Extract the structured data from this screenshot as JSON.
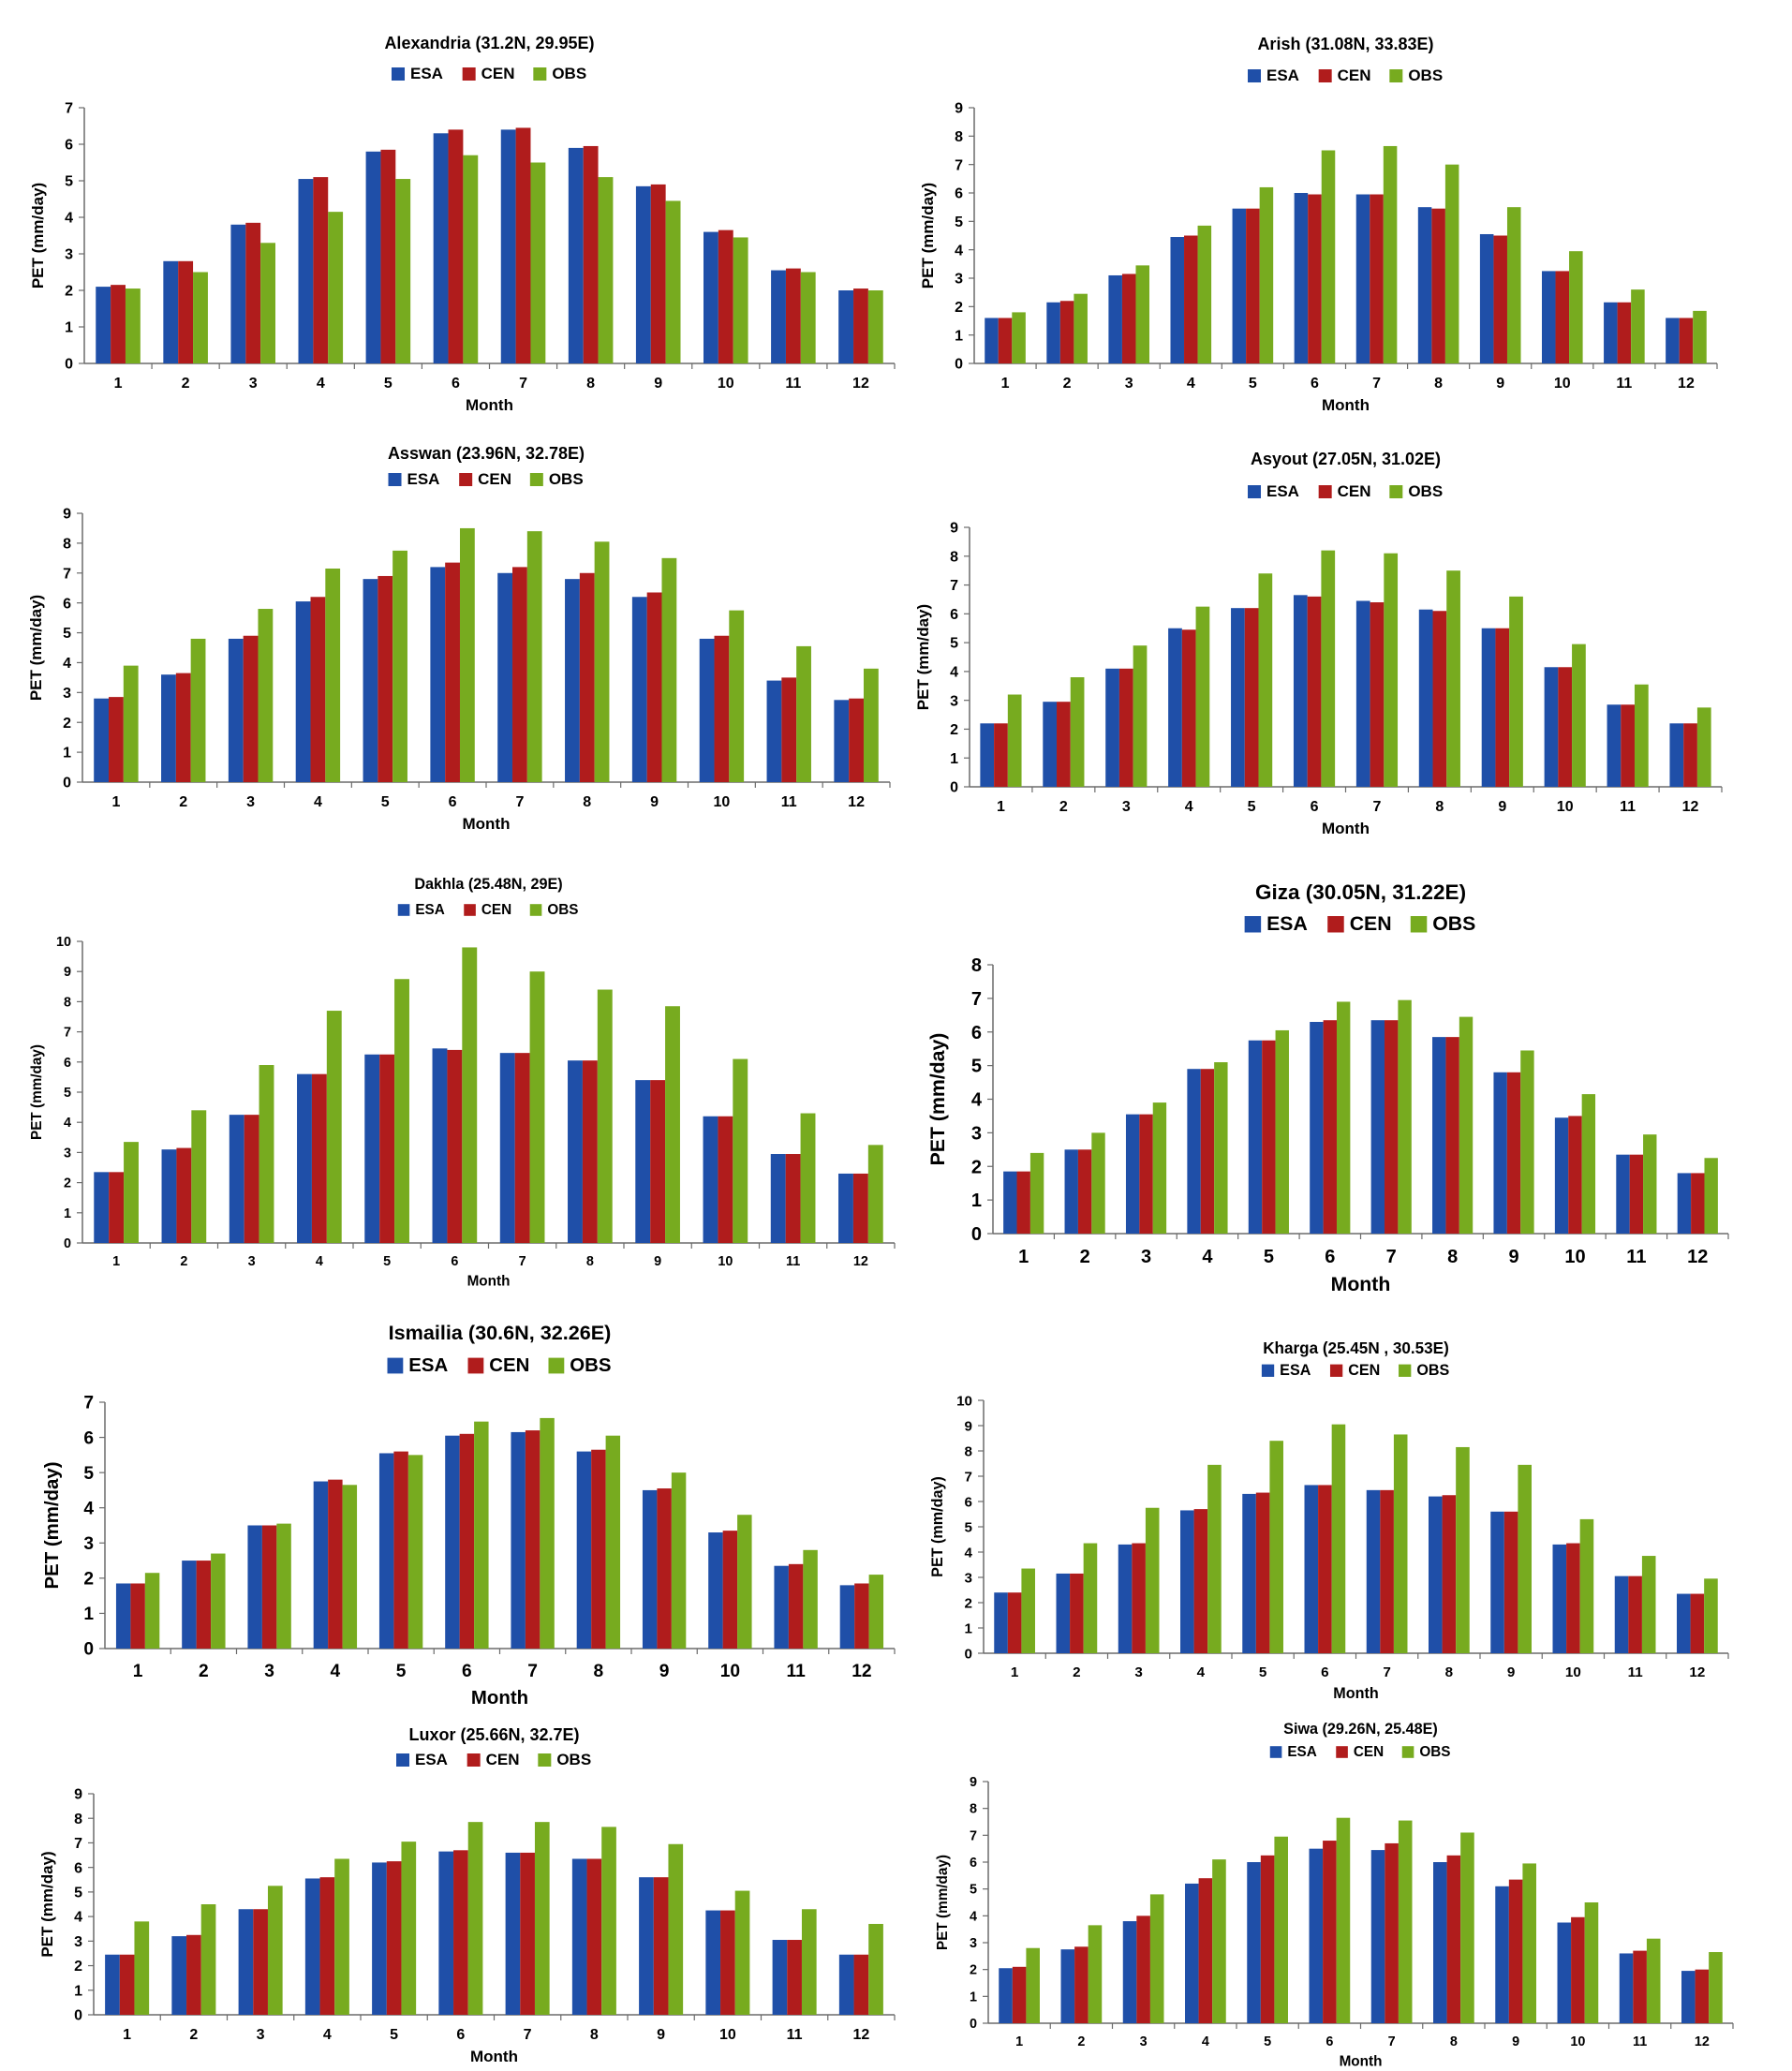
{
  "chart_data": [
    {
      "type": "bar",
      "title": "Alexandria (31.2N, 29.95E)",
      "xlabel": "Month",
      "ylabel": "PET (mm/day)",
      "ylim": [
        0,
        7
      ],
      "yticks": [
        0,
        1,
        2,
        3,
        4,
        5,
        6,
        7
      ],
      "categories": [
        "1",
        "2",
        "3",
        "4",
        "5",
        "6",
        "7",
        "8",
        "9",
        "10",
        "11",
        "12"
      ],
      "legend": "top-center",
      "grid": false,
      "series": [
        {
          "name": "ESA",
          "color": "#1F4FA8",
          "values": [
            2.1,
            2.8,
            3.8,
            5.05,
            5.8,
            6.3,
            6.4,
            5.9,
            4.85,
            3.6,
            2.55,
            2.0
          ]
        },
        {
          "name": "CEN",
          "color": "#B01C1C",
          "values": [
            2.15,
            2.8,
            3.85,
            5.1,
            5.85,
            6.4,
            6.45,
            5.95,
            4.9,
            3.65,
            2.6,
            2.05
          ]
        },
        {
          "name": "OBS",
          "color": "#77AB1F",
          "values": [
            2.05,
            2.5,
            3.3,
            4.15,
            5.05,
            5.7,
            5.5,
            5.1,
            4.45,
            3.45,
            2.5,
            2.0
          ]
        }
      ]
    },
    {
      "type": "bar",
      "title": "Arish (31.08N, 33.83E)",
      "xlabel": "Month",
      "ylabel": "PET (mm/day)",
      "ylim": [
        0,
        9
      ],
      "yticks": [
        0,
        1,
        2,
        3,
        4,
        5,
        6,
        7,
        8,
        9
      ],
      "categories": [
        "1",
        "2",
        "3",
        "4",
        "5",
        "6",
        "7",
        "8",
        "9",
        "10",
        "11",
        "12"
      ],
      "legend": "top-center",
      "grid": false,
      "series": [
        {
          "name": "ESA",
          "color": "#1F4FA8",
          "values": [
            1.6,
            2.15,
            3.1,
            4.45,
            5.45,
            6.0,
            5.95,
            5.5,
            4.55,
            3.25,
            2.15,
            1.6
          ]
        },
        {
          "name": "CEN",
          "color": "#B01C1C",
          "values": [
            1.6,
            2.2,
            3.15,
            4.5,
            5.45,
            5.95,
            5.95,
            5.45,
            4.5,
            3.25,
            2.15,
            1.6
          ]
        },
        {
          "name": "OBS",
          "color": "#77AB1F",
          "values": [
            1.8,
            2.45,
            3.45,
            4.85,
            6.2,
            7.5,
            7.65,
            7.0,
            5.5,
            3.95,
            2.6,
            1.85
          ]
        }
      ]
    },
    {
      "type": "bar",
      "title": "Asswan (23.96N, 32.78E)",
      "xlabel": "Month",
      "ylabel": "PET (mm/day)",
      "ylim": [
        0,
        9
      ],
      "yticks": [
        0,
        1,
        2,
        3,
        4,
        5,
        6,
        7,
        8,
        9
      ],
      "categories": [
        "1",
        "2",
        "3",
        "4",
        "5",
        "6",
        "7",
        "8",
        "9",
        "10",
        "11",
        "12"
      ],
      "legend": "top-center",
      "grid": false,
      "series": [
        {
          "name": "ESA",
          "color": "#1F4FA8",
          "values": [
            2.8,
            3.6,
            4.8,
            6.05,
            6.8,
            7.2,
            7.0,
            6.8,
            6.2,
            4.8,
            3.4,
            2.75
          ]
        },
        {
          "name": "CEN",
          "color": "#B01C1C",
          "values": [
            2.85,
            3.65,
            4.9,
            6.2,
            6.9,
            7.35,
            7.2,
            7.0,
            6.35,
            4.9,
            3.5,
            2.8
          ]
        },
        {
          "name": "OBS",
          "color": "#77AB1F",
          "values": [
            3.9,
            4.8,
            5.8,
            7.15,
            7.75,
            8.5,
            8.4,
            8.05,
            7.5,
            5.75,
            4.55,
            3.8
          ]
        }
      ]
    },
    {
      "type": "bar",
      "title": "Asyout (27.05N, 31.02E)",
      "xlabel": "Month",
      "ylabel": "PET (mm/day)",
      "ylim": [
        0,
        9
      ],
      "yticks": [
        0,
        1,
        2,
        3,
        4,
        5,
        6,
        7,
        8,
        9
      ],
      "categories": [
        "1",
        "2",
        "3",
        "4",
        "5",
        "6",
        "7",
        "8",
        "9",
        "10",
        "11",
        "12"
      ],
      "legend": "top-center",
      "grid": false,
      "series": [
        {
          "name": "ESA",
          "color": "#1F4FA8",
          "values": [
            2.2,
            2.95,
            4.1,
            5.5,
            6.2,
            6.65,
            6.45,
            6.15,
            5.5,
            4.15,
            2.85,
            2.2
          ]
        },
        {
          "name": "CEN",
          "color": "#B01C1C",
          "values": [
            2.2,
            2.95,
            4.1,
            5.45,
            6.2,
            6.6,
            6.4,
            6.1,
            5.5,
            4.15,
            2.85,
            2.2
          ]
        },
        {
          "name": "OBS",
          "color": "#77AB1F",
          "values": [
            3.2,
            3.8,
            4.9,
            6.25,
            7.4,
            8.2,
            8.1,
            7.5,
            6.6,
            4.95,
            3.55,
            2.75
          ]
        }
      ]
    },
    {
      "type": "bar",
      "title": "Dakhla (25.48N, 29E)",
      "xlabel": "Month",
      "ylabel": "PET (mm/day)",
      "ylim": [
        0,
        10
      ],
      "yticks": [
        0,
        1,
        2,
        3,
        4,
        5,
        6,
        7,
        8,
        9,
        10
      ],
      "categories": [
        "1",
        "2",
        "3",
        "4",
        "5",
        "6",
        "7",
        "8",
        "9",
        "10",
        "11",
        "12"
      ],
      "legend": "top-center",
      "grid": false,
      "series": [
        {
          "name": "ESA",
          "color": "#1F4FA8",
          "values": [
            2.35,
            3.1,
            4.25,
            5.6,
            6.25,
            6.45,
            6.3,
            6.05,
            5.4,
            4.2,
            2.95,
            2.3
          ]
        },
        {
          "name": "CEN",
          "color": "#B01C1C",
          "values": [
            2.35,
            3.15,
            4.25,
            5.6,
            6.25,
            6.4,
            6.3,
            6.05,
            5.4,
            4.2,
            2.95,
            2.3
          ]
        },
        {
          "name": "OBS",
          "color": "#77AB1F",
          "values": [
            3.35,
            4.4,
            5.9,
            7.7,
            8.75,
            9.8,
            9.0,
            8.4,
            7.85,
            6.1,
            4.3,
            3.25
          ]
        }
      ]
    },
    {
      "type": "bar",
      "title": "Giza (30.05N, 31.22E)",
      "xlabel": "Month",
      "ylabel": "PET (mm/day)",
      "ylim": [
        0,
        8
      ],
      "yticks": [
        0,
        1,
        2,
        3,
        4,
        5,
        6,
        7,
        8
      ],
      "categories": [
        "1",
        "2",
        "3",
        "4",
        "5",
        "6",
        "7",
        "8",
        "9",
        "10",
        "11",
        "12"
      ],
      "legend": "top-center",
      "grid": false,
      "series": [
        {
          "name": "ESA",
          "color": "#1F4FA8",
          "values": [
            1.85,
            2.5,
            3.55,
            4.9,
            5.75,
            6.3,
            6.35,
            5.85,
            4.8,
            3.45,
            2.35,
            1.8
          ]
        },
        {
          "name": "CEN",
          "color": "#B01C1C",
          "values": [
            1.85,
            2.5,
            3.55,
            4.9,
            5.75,
            6.35,
            6.35,
            5.85,
            4.8,
            3.5,
            2.35,
            1.8
          ]
        },
        {
          "name": "OBS",
          "color": "#77AB1F",
          "values": [
            2.4,
            3.0,
            3.9,
            5.1,
            6.05,
            6.9,
            6.95,
            6.45,
            5.45,
            4.15,
            2.95,
            2.25
          ]
        }
      ]
    },
    {
      "type": "bar",
      "title": "Ismailia (30.6N, 32.26E)",
      "xlabel": "Month",
      "ylabel": "PET (mm/day)",
      "ylim": [
        0,
        7
      ],
      "yticks": [
        0,
        1,
        2,
        3,
        4,
        5,
        6,
        7
      ],
      "categories": [
        "1",
        "2",
        "3",
        "4",
        "5",
        "6",
        "7",
        "8",
        "9",
        "10",
        "11",
        "12"
      ],
      "legend": "top-center",
      "grid": false,
      "series": [
        {
          "name": "ESA",
          "color": "#1F4FA8",
          "values": [
            1.85,
            2.5,
            3.5,
            4.75,
            5.55,
            6.05,
            6.15,
            5.6,
            4.5,
            3.3,
            2.35,
            1.8
          ]
        },
        {
          "name": "CEN",
          "color": "#B01C1C",
          "values": [
            1.85,
            2.5,
            3.5,
            4.8,
            5.6,
            6.1,
            6.2,
            5.65,
            4.55,
            3.35,
            2.4,
            1.85
          ]
        },
        {
          "name": "OBS",
          "color": "#77AB1F",
          "values": [
            2.15,
            2.7,
            3.55,
            4.65,
            5.5,
            6.45,
            6.55,
            6.05,
            5.0,
            3.8,
            2.8,
            2.1
          ]
        }
      ]
    },
    {
      "type": "bar",
      "title": "Kharga (25.45N , 30.53E)",
      "xlabel": "Month",
      "ylabel": "PET (mm/day)",
      "ylim": [
        0,
        10
      ],
      "yticks": [
        0,
        1,
        2,
        3,
        4,
        5,
        6,
        7,
        8,
        9,
        10
      ],
      "categories": [
        "1",
        "2",
        "3",
        "4",
        "5",
        "6",
        "7",
        "8",
        "9",
        "10",
        "11",
        "12"
      ],
      "legend": "top-center",
      "grid": false,
      "series": [
        {
          "name": "ESA",
          "color": "#1F4FA8",
          "values": [
            2.4,
            3.15,
            4.3,
            5.65,
            6.3,
            6.65,
            6.45,
            6.2,
            5.6,
            4.3,
            3.05,
            2.35
          ]
        },
        {
          "name": "CEN",
          "color": "#B01C1C",
          "values": [
            2.4,
            3.15,
            4.35,
            5.7,
            6.35,
            6.65,
            6.45,
            6.25,
            5.6,
            4.35,
            3.05,
            2.35
          ]
        },
        {
          "name": "OBS",
          "color": "#77AB1F",
          "values": [
            3.35,
            4.35,
            5.75,
            7.45,
            8.4,
            9.05,
            8.65,
            8.15,
            7.45,
            5.3,
            3.85,
            2.95
          ]
        }
      ]
    },
    {
      "type": "bar",
      "title": "Luxor (25.66N, 32.7E)",
      "xlabel": "Month",
      "ylabel": "PET (mm/day)",
      "ylim": [
        0,
        9
      ],
      "yticks": [
        0,
        1,
        2,
        3,
        4,
        5,
        6,
        7,
        8,
        9
      ],
      "categories": [
        "1",
        "2",
        "3",
        "4",
        "5",
        "6",
        "7",
        "8",
        "9",
        "10",
        "11",
        "12"
      ],
      "legend": "top-center",
      "grid": false,
      "series": [
        {
          "name": "ESA",
          "color": "#1F4FA8",
          "values": [
            2.45,
            3.2,
            4.3,
            5.55,
            6.2,
            6.65,
            6.6,
            6.35,
            5.6,
            4.25,
            3.05,
            2.45
          ]
        },
        {
          "name": "CEN",
          "color": "#B01C1C",
          "values": [
            2.45,
            3.25,
            4.3,
            5.6,
            6.25,
            6.7,
            6.6,
            6.35,
            5.6,
            4.25,
            3.05,
            2.45
          ]
        },
        {
          "name": "OBS",
          "color": "#77AB1F",
          "values": [
            3.8,
            4.5,
            5.25,
            6.35,
            7.05,
            7.85,
            7.85,
            7.65,
            6.95,
            5.05,
            4.3,
            3.7
          ]
        }
      ]
    },
    {
      "type": "bar",
      "title": "Siwa (29.26N, 25.48E)",
      "xlabel": "Month",
      "ylabel": "PET (mm/day)",
      "ylim": [
        0,
        9
      ],
      "yticks": [
        0,
        1,
        2,
        3,
        4,
        5,
        6,
        7,
        8,
        9
      ],
      "categories": [
        "1",
        "2",
        "3",
        "4",
        "5",
        "6",
        "7",
        "8",
        "9",
        "10",
        "11",
        "12"
      ],
      "legend": "top-center",
      "grid": false,
      "series": [
        {
          "name": "ESA",
          "color": "#1F4FA8",
          "values": [
            2.05,
            2.75,
            3.8,
            5.2,
            6.0,
            6.5,
            6.45,
            6.0,
            5.1,
            3.75,
            2.6,
            1.95
          ]
        },
        {
          "name": "CEN",
          "color": "#B01C1C",
          "values": [
            2.1,
            2.85,
            4.0,
            5.4,
            6.25,
            6.8,
            6.7,
            6.25,
            5.35,
            3.95,
            2.7,
            2.0
          ]
        },
        {
          "name": "OBS",
          "color": "#77AB1F",
          "values": [
            2.8,
            3.65,
            4.8,
            6.1,
            6.95,
            7.65,
            7.55,
            7.1,
            5.95,
            4.5,
            3.15,
            2.65
          ]
        }
      ]
    }
  ]
}
